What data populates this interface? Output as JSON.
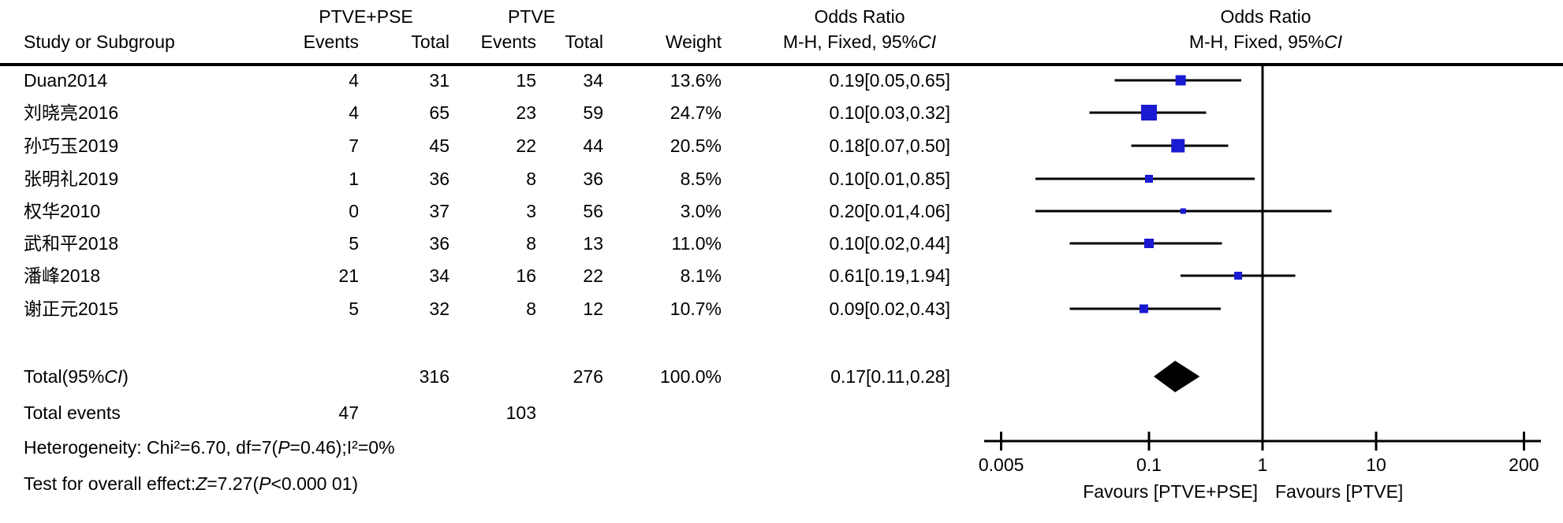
{
  "header": {
    "study": "Study or Subgroup",
    "group1": "PTVE+PSE",
    "group2": "PTVE",
    "events": "Events",
    "total": "Total",
    "weight": "Weight",
    "or_title": "Odds Ratio",
    "or_method": [
      {
        "t": "M-H, Fixed, 95%"
      },
      {
        "t": "CI",
        "i": true
      }
    ]
  },
  "chart_data": {
    "type": "forest",
    "effect_measure": "Odds Ratio (M-H, Fixed, 95% CI)",
    "axis": {
      "scale": "log",
      "ticks": [
        "0.005",
        "0.1",
        "1",
        "10",
        "200"
      ],
      "tick_values": [
        0.005,
        0.1,
        1,
        10,
        200
      ],
      "null_line": 1
    },
    "colors": {
      "square": "#1a1ad2",
      "diamond": "#000000",
      "line": "#000000"
    },
    "studies": [
      {
        "name": "Duan2014",
        "events1": "4",
        "total1": "31",
        "events2": "15",
        "total2": "34",
        "weight": "13.6%",
        "weight_value": 13.6,
        "or": 0.19,
        "ci_low": 0.05,
        "ci_high": 0.65,
        "or_text": "0.19[0.05,0.65]"
      },
      {
        "name": "刘晓亮2016",
        "events1": "4",
        "total1": "65",
        "events2": "23",
        "total2": "59",
        "weight": "24.7%",
        "weight_value": 24.7,
        "or": 0.1,
        "ci_low": 0.03,
        "ci_high": 0.32,
        "or_text": "0.10[0.03,0.32]"
      },
      {
        "name": "孙巧玉2019",
        "events1": "7",
        "total1": "45",
        "events2": "22",
        "total2": "44",
        "weight": "20.5%",
        "weight_value": 20.5,
        "or": 0.18,
        "ci_low": 0.07,
        "ci_high": 0.5,
        "or_text": "0.18[0.07,0.50]"
      },
      {
        "name": "张明礼2019",
        "events1": "1",
        "total1": "36",
        "events2": "8",
        "total2": "36",
        "weight": "8.5%",
        "weight_value": 8.5,
        "or": 0.1,
        "ci_low": 0.01,
        "ci_high": 0.85,
        "or_text": "0.10[0.01,0.85]"
      },
      {
        "name": "权华2010",
        "events1": "0",
        "total1": "37",
        "events2": "3",
        "total2": "56",
        "weight": "3.0%",
        "weight_value": 3.0,
        "or": 0.2,
        "ci_low": 0.01,
        "ci_high": 4.06,
        "or_text": "0.20[0.01,4.06]"
      },
      {
        "name": "武和平2018",
        "events1": "5",
        "total1": "36",
        "events2": "8",
        "total2": "13",
        "weight": "11.0%",
        "weight_value": 11.0,
        "or": 0.1,
        "ci_low": 0.02,
        "ci_high": 0.44,
        "or_text": "0.10[0.02,0.44]"
      },
      {
        "name": "潘峰2018",
        "events1": "21",
        "total1": "34",
        "events2": "16",
        "total2": "22",
        "weight": "8.1%",
        "weight_value": 8.1,
        "or": 0.61,
        "ci_low": 0.19,
        "ci_high": 1.94,
        "or_text": "0.61[0.19,1.94]"
      },
      {
        "name": "谢正元2015",
        "events1": "5",
        "total1": "32",
        "events2": "8",
        "total2": "12",
        "weight": "10.7%",
        "weight_value": 10.7,
        "or": 0.09,
        "ci_low": 0.02,
        "ci_high": 0.43,
        "or_text": "0.09[0.02,0.43]"
      }
    ],
    "total": {
      "label": [
        {
          "t": "Total(95%"
        },
        {
          "t": "CI",
          "i": true
        },
        {
          "t": ")"
        }
      ],
      "total1": "316",
      "total2": "276",
      "weight": "100.0%",
      "or": 0.17,
      "ci_low": 0.11,
      "ci_high": 0.28,
      "or_text": "0.17[0.11,0.28]"
    },
    "total_events": {
      "label": "Total events",
      "events1": "47",
      "events2": "103"
    },
    "heterogeneity": [
      {
        "t": "Heterogeneity: Chi²=6.70, df=7("
      },
      {
        "t": "P",
        "i": true
      },
      {
        "t": "=0.46);I²=0%"
      }
    ],
    "overall_effect": [
      {
        "t": "Test for overall effect:"
      },
      {
        "t": "Z",
        "i": true
      },
      {
        "t": "=7.27("
      },
      {
        "t": "P",
        "i": true
      },
      {
        "t": "<0.000 01)"
      }
    ],
    "favours_left": "Favours [PTVE+PSE]",
    "favours_right": "Favours [PTVE]"
  }
}
